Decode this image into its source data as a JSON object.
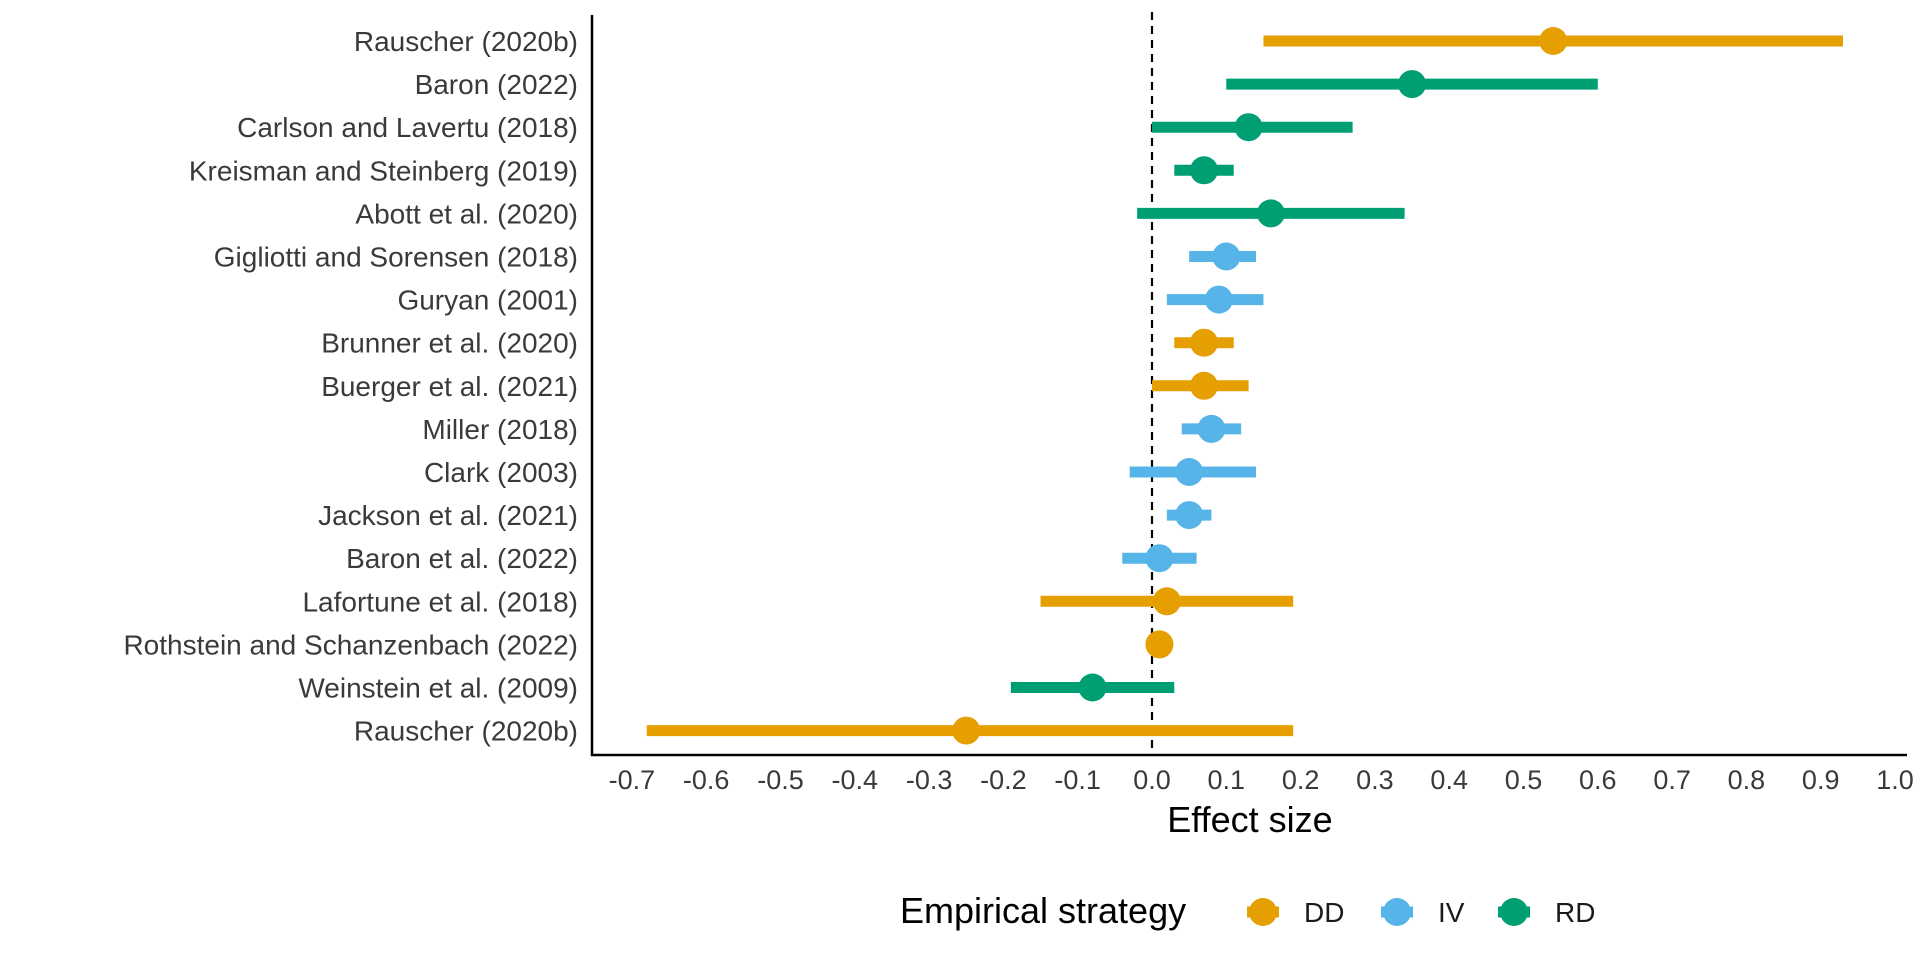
{
  "chart_data": {
    "type": "forest",
    "xlabel": "Effect size",
    "xlim": [
      -0.75,
      1.0
    ],
    "x_ticks": [
      "-0.7",
      "-0.6",
      "-0.5",
      "-0.4",
      "-0.3",
      "-0.2",
      "-0.1",
      "0.0",
      "0.1",
      "0.2",
      "0.3",
      "0.4",
      "0.5",
      "0.6",
      "0.7",
      "0.8",
      "0.9",
      "1.0"
    ],
    "reference_line": 0,
    "legend": {
      "title": "Empirical strategy",
      "position": "bottom",
      "items": [
        {
          "key": "DD",
          "label": "DD",
          "color": "#E69F00"
        },
        {
          "key": "IV",
          "label": "IV",
          "color": "#56B4E9"
        },
        {
          "key": "RD",
          "label": "RD",
          "color": "#009E73"
        }
      ]
    },
    "studies": [
      {
        "label": "Rauscher (2020b)",
        "strategy": "DD",
        "estimate": 0.54,
        "lower": 0.15,
        "upper": 0.93
      },
      {
        "label": "Baron (2022)",
        "strategy": "RD",
        "estimate": 0.35,
        "lower": 0.1,
        "upper": 0.6
      },
      {
        "label": "Carlson and Lavertu (2018)",
        "strategy": "RD",
        "estimate": 0.13,
        "lower": 0.0,
        "upper": 0.27
      },
      {
        "label": "Kreisman and Steinberg (2019)",
        "strategy": "RD",
        "estimate": 0.07,
        "lower": 0.03,
        "upper": 0.11
      },
      {
        "label": "Abott et al. (2020)",
        "strategy": "RD",
        "estimate": 0.16,
        "lower": -0.02,
        "upper": 0.34
      },
      {
        "label": "Gigliotti and Sorensen (2018)",
        "strategy": "IV",
        "estimate": 0.1,
        "lower": 0.05,
        "upper": 0.14
      },
      {
        "label": "Guryan (2001)",
        "strategy": "IV",
        "estimate": 0.09,
        "lower": 0.02,
        "upper": 0.15
      },
      {
        "label": "Brunner et al. (2020)",
        "strategy": "DD",
        "estimate": 0.07,
        "lower": 0.03,
        "upper": 0.11
      },
      {
        "label": "Buerger et al. (2021)",
        "strategy": "DD",
        "estimate": 0.07,
        "lower": 0.0,
        "upper": 0.13
      },
      {
        "label": "Miller (2018)",
        "strategy": "IV",
        "estimate": 0.08,
        "lower": 0.04,
        "upper": 0.12
      },
      {
        "label": "Clark (2003)",
        "strategy": "IV",
        "estimate": 0.05,
        "lower": -0.03,
        "upper": 0.14
      },
      {
        "label": "Jackson et al. (2021)",
        "strategy": "IV",
        "estimate": 0.05,
        "lower": 0.02,
        "upper": 0.08
      },
      {
        "label": "Baron et al. (2022)",
        "strategy": "IV",
        "estimate": 0.01,
        "lower": -0.04,
        "upper": 0.06
      },
      {
        "label": "Lafortune et al. (2018)",
        "strategy": "DD",
        "estimate": 0.02,
        "lower": -0.15,
        "upper": 0.19
      },
      {
        "label": "Rothstein and Schanzenbach (2022)",
        "strategy": "DD",
        "estimate": 0.01,
        "lower": 0.01,
        "upper": 0.01
      },
      {
        "label": "Weinstein et al. (2009)",
        "strategy": "RD",
        "estimate": -0.08,
        "lower": -0.19,
        "upper": 0.03
      },
      {
        "label": "Rauscher (2020b)",
        "strategy": "DD",
        "estimate": -0.25,
        "lower": -0.68,
        "upper": 0.19
      }
    ]
  }
}
